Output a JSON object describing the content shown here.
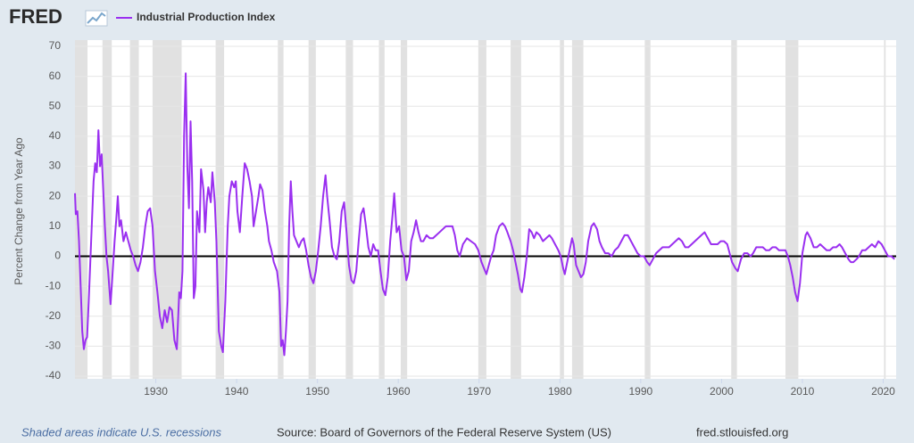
{
  "logo": "FRED",
  "footer": {
    "note": "Shaded areas indicate U.S. recessions",
    "source": "Source: Board of Governors of the Federal Reserve System (US)",
    "site": "fred.stlouisfed.org"
  },
  "chart_data": {
    "type": "line",
    "ylabel": "Percent Change from Year Ago",
    "xlim": [
      1920,
      2021.6
    ],
    "ylim": [
      -40,
      70
    ],
    "xticks": [
      1930,
      1940,
      1950,
      1960,
      1970,
      1980,
      1990,
      2000,
      2010,
      2020
    ],
    "yticks": [
      -40,
      -30,
      -20,
      -10,
      0,
      10,
      20,
      30,
      40,
      50,
      60,
      70
    ],
    "grid": true,
    "recessions": [
      [
        1920.0,
        1921.55
      ],
      [
        1923.4,
        1924.55
      ],
      [
        1926.8,
        1927.9
      ],
      [
        1929.6,
        1933.2
      ],
      [
        1937.4,
        1938.45
      ],
      [
        1945.1,
        1945.8
      ],
      [
        1948.9,
        1949.8
      ],
      [
        1953.5,
        1954.4
      ],
      [
        1957.6,
        1958.3
      ],
      [
        1960.3,
        1961.1
      ],
      [
        1969.9,
        1970.9
      ],
      [
        1973.9,
        1975.2
      ],
      [
        1980.0,
        1980.5
      ],
      [
        1981.5,
        1982.9
      ],
      [
        1990.5,
        1991.2
      ],
      [
        2001.2,
        2001.9
      ],
      [
        2007.9,
        2009.5
      ],
      [
        2020.1,
        2020.3
      ]
    ],
    "x": [
      1920.0,
      1920.1,
      1920.3,
      1920.5,
      1920.7,
      1920.9,
      1921.1,
      1921.3,
      1921.5,
      1921.7,
      1922.0,
      1922.3,
      1922.5,
      1922.7,
      1922.9,
      1923.1,
      1923.3,
      1923.5,
      1923.7,
      1923.9,
      1924.1,
      1924.4,
      1924.6,
      1924.9,
      1925.1,
      1925.3,
      1925.5,
      1925.7,
      1926.0,
      1926.3,
      1926.6,
      1926.9,
      1927.2,
      1927.5,
      1927.8,
      1928.1,
      1928.4,
      1928.7,
      1929.0,
      1929.3,
      1929.6,
      1929.9,
      1930.2,
      1930.5,
      1930.8,
      1931.1,
      1931.4,
      1931.7,
      1932.0,
      1932.3,
      1932.6,
      1932.9,
      1933.1,
      1933.3,
      1933.5,
      1933.7,
      1933.9,
      1934.1,
      1934.3,
      1934.5,
      1934.7,
      1934.9,
      1935.1,
      1935.4,
      1935.6,
      1935.9,
      1936.1,
      1936.3,
      1936.5,
      1936.8,
      1937.0,
      1937.3,
      1937.5,
      1937.8,
      1938.1,
      1938.3,
      1938.6,
      1938.9,
      1939.1,
      1939.4,
      1939.7,
      1939.9,
      1940.1,
      1940.4,
      1940.7,
      1941.0,
      1941.3,
      1941.6,
      1941.9,
      1942.1,
      1942.4,
      1942.7,
      1942.9,
      1943.2,
      1943.5,
      1943.8,
      1944.0,
      1944.3,
      1944.6,
      1945.0,
      1945.3,
      1945.5,
      1945.7,
      1945.9,
      1946.1,
      1946.3,
      1946.5,
      1946.7,
      1946.9,
      1947.1,
      1947.4,
      1947.7,
      1948.0,
      1948.3,
      1948.6,
      1948.9,
      1949.2,
      1949.5,
      1949.8,
      1950.1,
      1950.4,
      1950.7,
      1951.0,
      1951.2,
      1951.5,
      1951.8,
      1952.1,
      1952.4,
      1952.7,
      1953.0,
      1953.3,
      1953.6,
      1953.9,
      1954.2,
      1954.5,
      1954.8,
      1955.1,
      1955.4,
      1955.7,
      1956.0,
      1956.3,
      1956.6,
      1956.9,
      1957.2,
      1957.5,
      1957.8,
      1958.1,
      1958.4,
      1958.7,
      1959.0,
      1959.3,
      1959.5,
      1959.8,
      1960.1,
      1960.4,
      1960.7,
      1961.0,
      1961.3,
      1961.6,
      1961.9,
      1962.2,
      1962.5,
      1962.8,
      1963.1,
      1963.5,
      1963.9,
      1964.3,
      1964.7,
      1965.1,
      1965.5,
      1965.9,
      1966.3,
      1966.7,
      1967.0,
      1967.3,
      1967.6,
      1968.0,
      1968.5,
      1969.0,
      1969.5,
      1969.9,
      1970.3,
      1970.6,
      1970.9,
      1971.2,
      1971.5,
      1971.8,
      1972.1,
      1972.5,
      1972.9,
      1973.2,
      1973.5,
      1973.9,
      1974.2,
      1974.5,
      1974.8,
      1975.1,
      1975.3,
      1975.6,
      1975.9,
      1976.2,
      1976.5,
      1976.8,
      1977.1,
      1977.5,
      1977.9,
      1978.3,
      1978.7,
      1979.0,
      1979.4,
      1979.8,
      1980.1,
      1980.4,
      1980.6,
      1980.9,
      1981.2,
      1981.5,
      1981.7,
      1982.0,
      1982.3,
      1982.6,
      1982.9,
      1983.2,
      1983.5,
      1983.9,
      1984.2,
      1984.6,
      1984.9,
      1985.2,
      1985.6,
      1986.0,
      1986.4,
      1986.8,
      1987.2,
      1987.6,
      1988.0,
      1988.4,
      1988.8,
      1989.2,
      1989.6,
      1990.0,
      1990.4,
      1990.8,
      1991.1,
      1991.5,
      1991.9,
      1992.3,
      1992.7,
      1993.1,
      1993.5,
      1993.9,
      1994.3,
      1994.7,
      1995.1,
      1995.5,
      1995.9,
      1996.3,
      1996.7,
      1997.1,
      1997.5,
      1997.9,
      1998.3,
      1998.7,
      1999.1,
      1999.5,
      1999.9,
      2000.3,
      2000.7,
      2001.0,
      2001.3,
      2001.7,
      2002.0,
      2002.4,
      2002.8,
      2003.2,
      2003.6,
      2003.9,
      2004.3,
      2004.7,
      2005.1,
      2005.5,
      2005.9,
      2006.3,
      2006.7,
      2007.1,
      2007.5,
      2007.9,
      2008.2,
      2008.5,
      2008.8,
      2009.1,
      2009.4,
      2009.7,
      2010.0,
      2010.4,
      2010.6,
      2011.0,
      2011.4,
      2011.8,
      2012.2,
      2012.6,
      2013.0,
      2013.4,
      2013.8,
      2014.2,
      2014.6,
      2014.9,
      2015.3,
      2015.7,
      2016.0,
      2016.3,
      2016.7,
      2017.0,
      2017.4,
      2017.8,
      2018.2,
      2018.6,
      2019.0,
      2019.4,
      2019.8,
      2020.2,
      2020.6,
      2021.0,
      2021.4
    ],
    "series": [
      {
        "name": "Industrial Production Index",
        "color": "#9a2ff0",
        "values": [
          21,
          14,
          15,
          5,
          -10,
          -25,
          -31,
          -28,
          -27,
          -15,
          5,
          25,
          31,
          28,
          42,
          30,
          34,
          22,
          10,
          0,
          -5,
          -16,
          -8,
          5,
          12,
          20,
          10,
          12,
          5,
          8,
          5,
          2,
          0,
          -3,
          -5,
          -2,
          3,
          10,
          15,
          16,
          10,
          -5,
          -12,
          -20,
          -24,
          -18,
          -22,
          -17,
          -18,
          -28,
          -31,
          -12,
          -14,
          -5,
          40,
          61,
          30,
          16,
          45,
          25,
          -14,
          -10,
          15,
          8,
          29,
          22,
          8,
          18,
          23,
          18,
          28,
          18,
          5,
          -25,
          -30,
          -32,
          -15,
          10,
          20,
          25,
          23,
          25,
          15,
          8,
          20,
          31,
          29,
          25,
          20,
          10,
          15,
          20,
          24,
          22,
          15,
          10,
          5,
          2,
          -2,
          -5,
          -12,
          -30,
          -28,
          -33,
          -25,
          -15,
          10,
          25,
          15,
          7,
          5,
          3,
          5,
          6,
          2,
          -3,
          -7,
          -9,
          -5,
          2,
          10,
          20,
          27,
          20,
          12,
          3,
          0,
          -1,
          5,
          15,
          18,
          8,
          -3,
          -8,
          -9,
          -5,
          5,
          14,
          16,
          10,
          3,
          0,
          4,
          2,
          2,
          -5,
          -11,
          -13,
          -7,
          5,
          14,
          21,
          8,
          10,
          2,
          0,
          -8,
          -5,
          5,
          8,
          12,
          8,
          5,
          5,
          7,
          6,
          6,
          7,
          8,
          9,
          10,
          10,
          10,
          7,
          2,
          0,
          4,
          6,
          5,
          4,
          2,
          -2,
          -4,
          -6,
          -3,
          0,
          2,
          7,
          10,
          11,
          10,
          8,
          5,
          2,
          -2,
          -6,
          -11,
          -12,
          -7,
          0,
          9,
          8,
          6,
          8,
          7,
          5,
          6,
          7,
          6,
          4,
          2,
          0,
          -4,
          -6,
          -2,
          2,
          6,
          4,
          -3,
          -5,
          -7,
          -6,
          -2,
          5,
          10,
          11,
          9,
          5,
          3,
          1,
          1,
          0,
          2,
          3,
          5,
          7,
          7,
          5,
          3,
          1,
          0,
          0,
          -2,
          -3,
          -1,
          1,
          2,
          3,
          3,
          3,
          4,
          5,
          6,
          5,
          3,
          3,
          4,
          5,
          6,
          7,
          8,
          6,
          4,
          4,
          4,
          5,
          5,
          4,
          1,
          -2,
          -4,
          -5,
          -1,
          1,
          1,
          0,
          1,
          3,
          3,
          3,
          2,
          2,
          3,
          3,
          2,
          2,
          2,
          0,
          -3,
          -7,
          -12,
          -15,
          -9,
          1,
          7,
          8,
          6,
          3,
          3,
          4,
          3,
          2,
          2,
          3,
          3,
          4,
          3,
          1,
          -1,
          -2,
          -2,
          -1,
          0,
          2,
          2,
          3,
          4,
          3,
          5,
          4,
          2,
          0,
          0,
          -1
        ]
      }
    ]
  }
}
